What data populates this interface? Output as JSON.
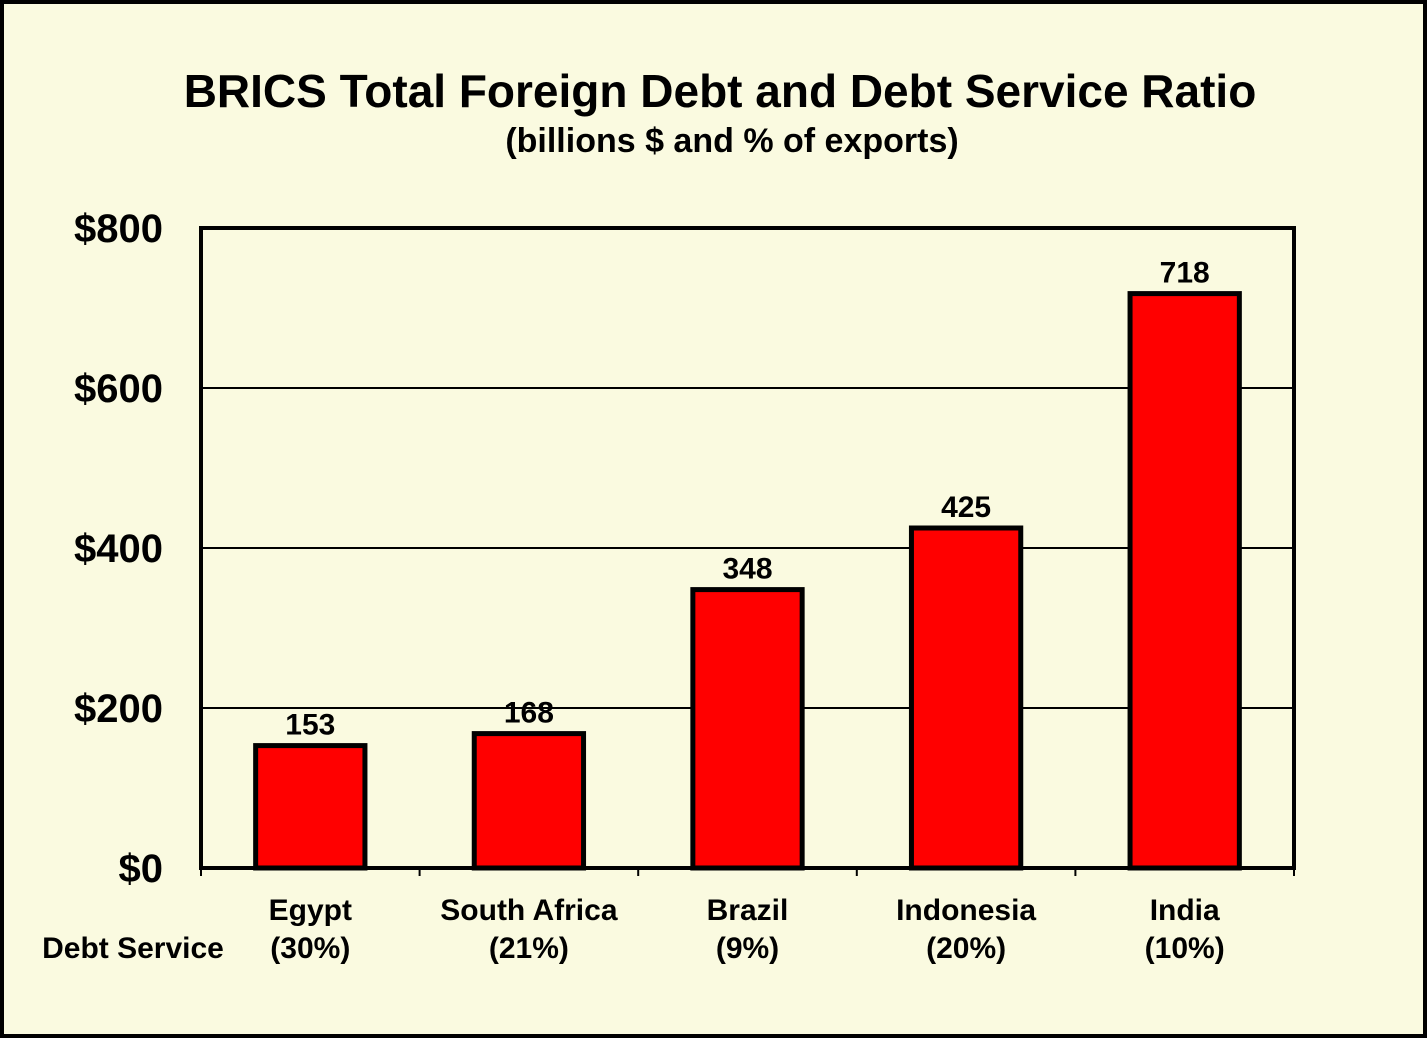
{
  "chart_data": {
    "type": "bar",
    "title": "BRICS Total Foreign Debt and Debt Service Ratio",
    "subtitle": "(billions $ and % of exports)",
    "categories": [
      "Egypt",
      "South Africa",
      "Brazil",
      "Indonesia",
      "India"
    ],
    "category_sublabels": [
      "(30%)",
      "(21%)",
      "(9%)",
      "(20%)",
      "(10%)"
    ],
    "row_label": "Debt Service",
    "values": [
      153,
      168,
      348,
      425,
      718
    ],
    "data_labels": [
      "153",
      "168",
      "348",
      "425",
      "718"
    ],
    "ylim": [
      0,
      800
    ],
    "yticks": [
      0,
      200,
      400,
      600,
      800
    ],
    "ytick_labels": [
      "$0",
      "$200",
      "$400",
      "$600",
      "$800"
    ],
    "grid": true,
    "legend": "none",
    "colors": {
      "background": "#FAFAE0",
      "bar": "#FF0000",
      "bar_outline": "#000000",
      "frame": "#000000"
    }
  }
}
